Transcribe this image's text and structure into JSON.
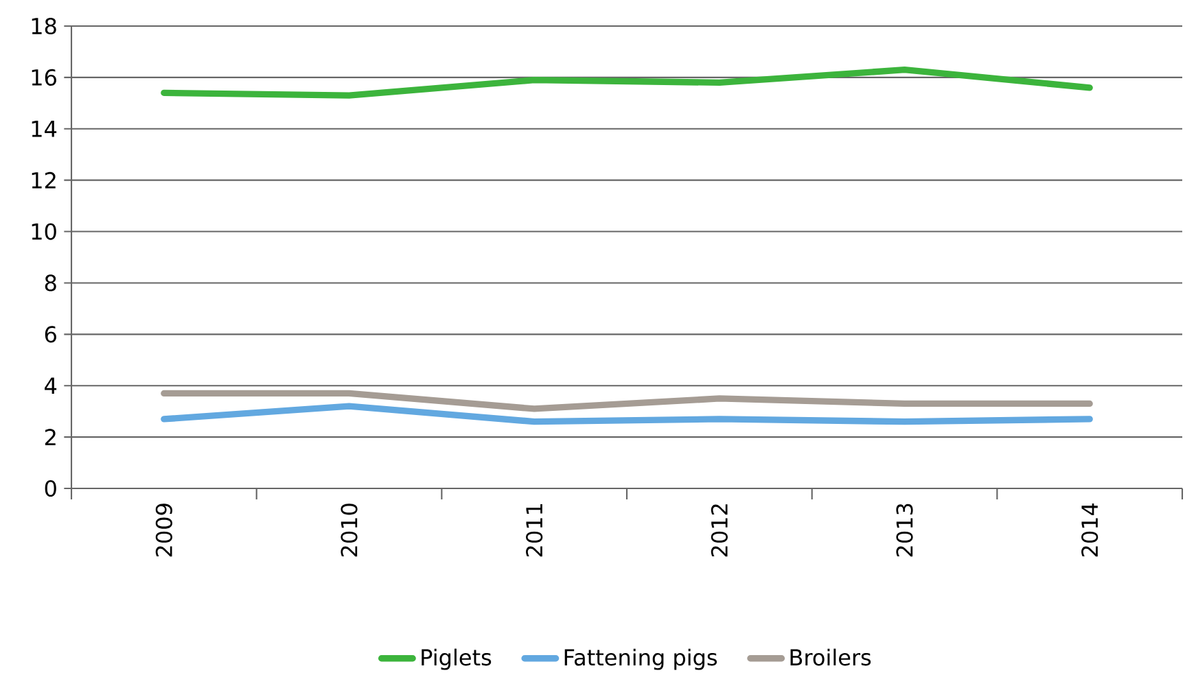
{
  "chart_data": {
    "type": "line",
    "categories": [
      "2009",
      "2010",
      "2011",
      "2012",
      "2013",
      "2014"
    ],
    "series": [
      {
        "name": "Piglets",
        "color": "#3cb43c",
        "values": [
          15.4,
          15.3,
          15.9,
          15.8,
          16.3,
          15.6
        ]
      },
      {
        "name": "Fattening pigs",
        "color": "#62a8e0",
        "values": [
          2.7,
          3.2,
          2.6,
          2.7,
          2.6,
          2.7
        ]
      },
      {
        "name": "Broilers",
        "color": "#a59c94",
        "values": [
          3.7,
          3.7,
          3.1,
          3.5,
          3.3,
          3.3
        ]
      }
    ],
    "ylim": [
      0,
      18
    ],
    "yticks": [
      0,
      2,
      4,
      6,
      8,
      10,
      12,
      14,
      16,
      18
    ],
    "grid": "y",
    "legend": "bottom",
    "marker": "none",
    "line_style": "solid"
  }
}
